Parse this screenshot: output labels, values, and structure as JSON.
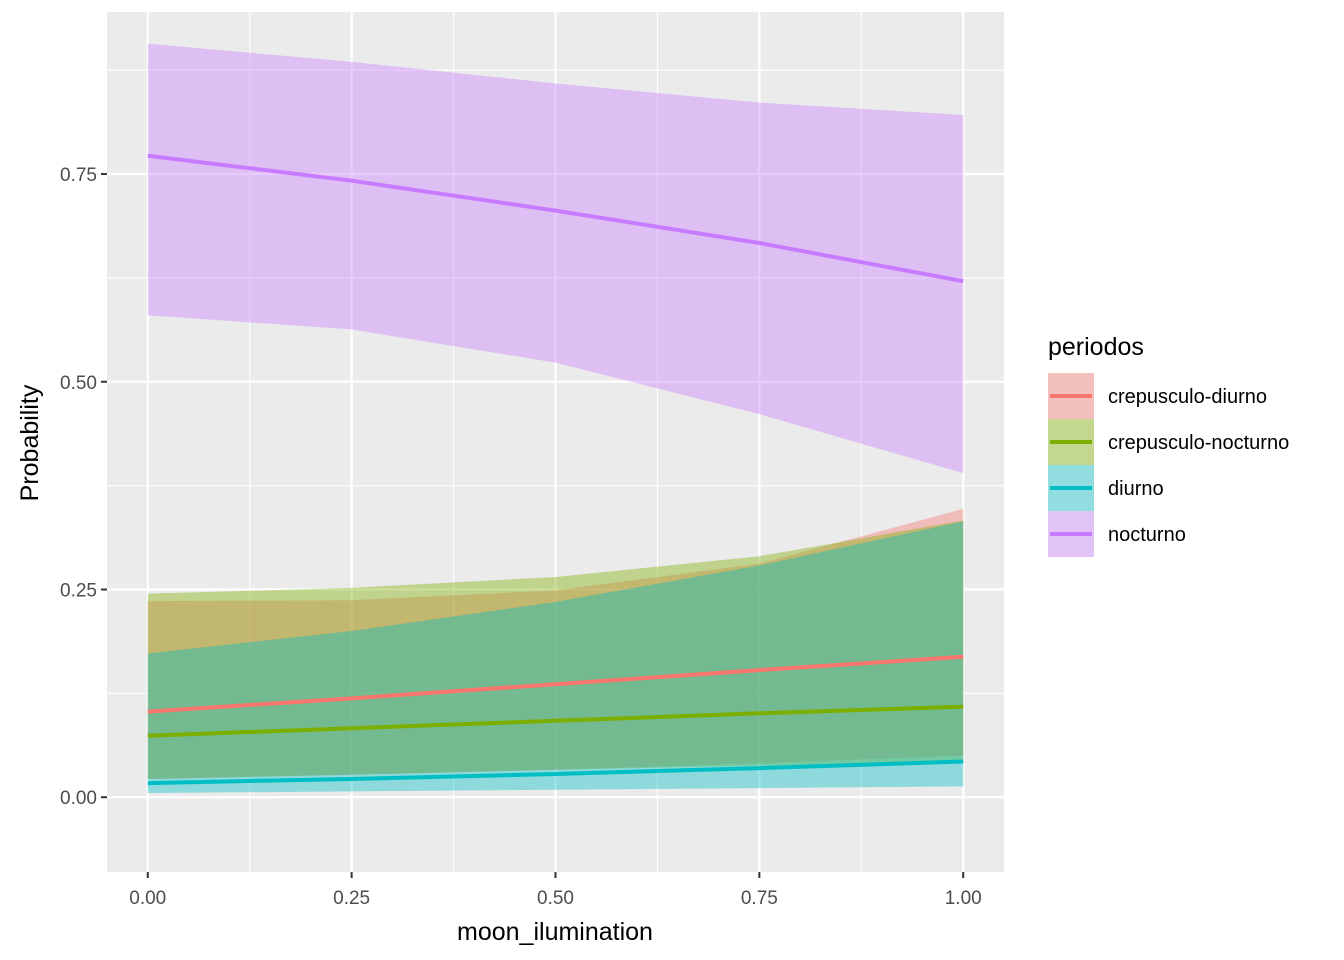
{
  "chart_data": {
    "type": "area",
    "xlabel": "moon_ilumination",
    "ylabel": "Probability",
    "xlim": [
      -0.05,
      1.05
    ],
    "ylim": [
      -0.09,
      0.945
    ],
    "x_ticks": [
      0.0,
      0.25,
      0.5,
      0.75,
      1.0
    ],
    "x_tick_labels": [
      "0.00",
      "0.25",
      "0.50",
      "0.75",
      "1.00"
    ],
    "y_ticks": [
      0.0,
      0.25,
      0.5,
      0.75
    ],
    "y_tick_labels": [
      "0.00",
      "0.25",
      "0.50",
      "0.75"
    ],
    "grid": true,
    "legend": {
      "title": "periodos",
      "placement": "right"
    },
    "x": [
      0.0,
      0.25,
      0.5,
      0.75,
      1.0
    ],
    "series": [
      {
        "name": "crepusculo-diurno",
        "color": "#F8766D",
        "fit": [
          0.103,
          0.119,
          0.136,
          0.153,
          0.169
        ],
        "lower": [
          0.022,
          0.027,
          0.033,
          0.041,
          0.05
        ],
        "upper": [
          0.236,
          0.237,
          0.249,
          0.281,
          0.347
        ]
      },
      {
        "name": "crepusculo-nocturno",
        "color": "#7CAE00",
        "fit": [
          0.074,
          0.083,
          0.092,
          0.101,
          0.109
        ],
        "lower": [
          0.022,
          0.027,
          0.033,
          0.038,
          0.044
        ],
        "upper": [
          0.245,
          0.252,
          0.265,
          0.29,
          0.333
        ]
      },
      {
        "name": "diurno",
        "color": "#00BFC4",
        "fit": [
          0.017,
          0.022,
          0.028,
          0.035,
          0.043
        ],
        "lower": [
          0.005,
          0.007,
          0.009,
          0.011,
          0.013
        ],
        "upper": [
          0.173,
          0.2,
          0.235,
          0.279,
          0.332
        ]
      },
      {
        "name": "nocturno",
        "color": "#C77CFF",
        "fit": [
          0.772,
          0.742,
          0.706,
          0.667,
          0.621
        ],
        "lower": [
          0.58,
          0.563,
          0.523,
          0.461,
          0.39
        ],
        "upper": [
          0.907,
          0.885,
          0.859,
          0.836,
          0.821
        ]
      }
    ]
  }
}
